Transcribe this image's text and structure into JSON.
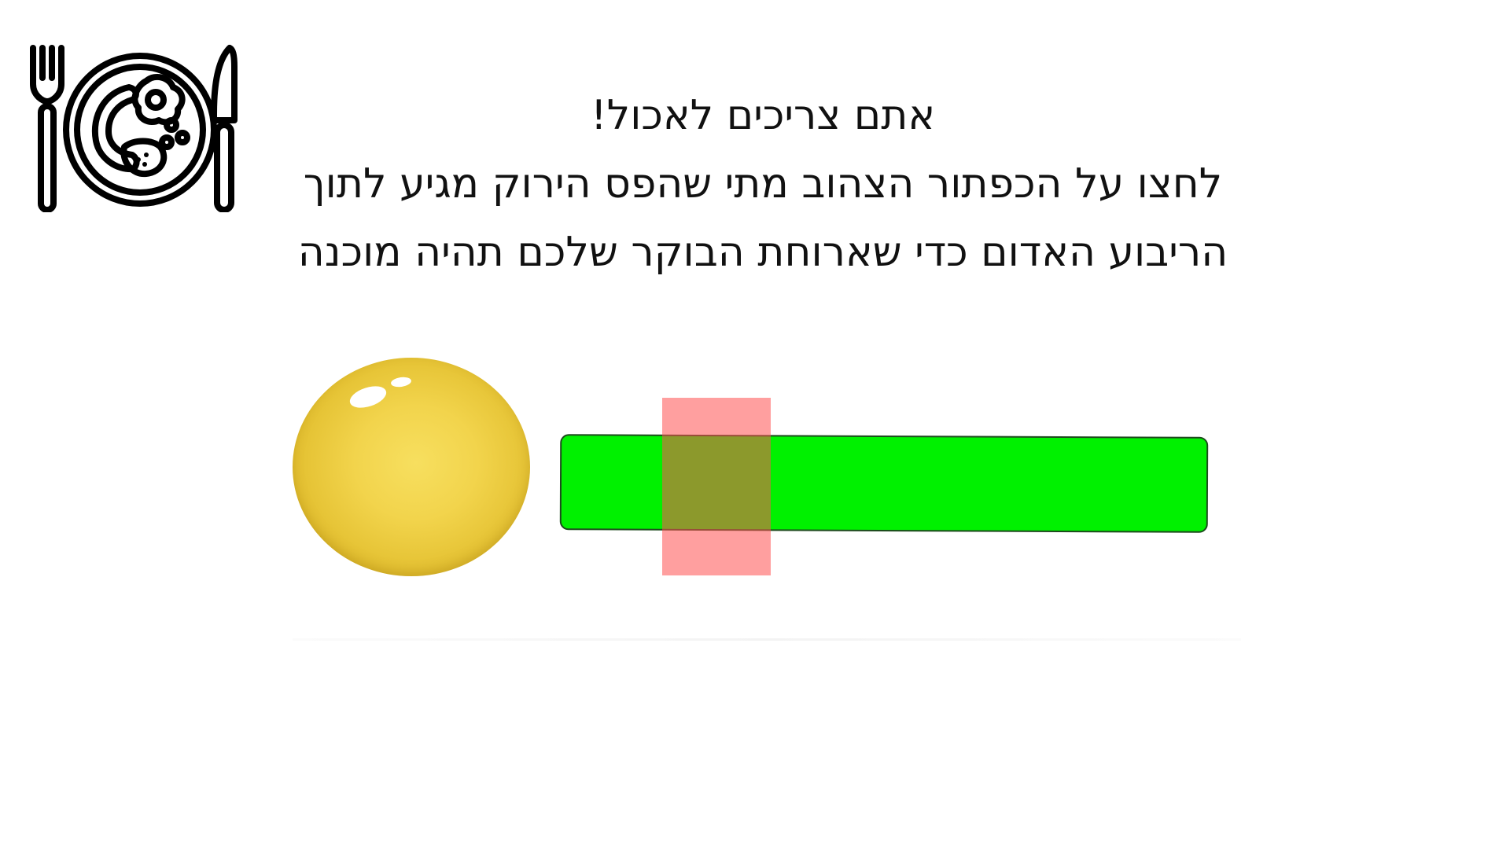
{
  "instructions": {
    "line1": "אתם צריכים לאכול!",
    "line2": "לחצו על הכפתור הצהוב מתי שהפס הירוק מגיע לתוך",
    "line3": "הריבוע האדום כדי שארוחת הבוקר שלכם תהיה מוכנה"
  },
  "icons": {
    "header": "plate-with-fork-and-knife-icon"
  },
  "colors": {
    "button_yellow": "#f2d44c",
    "bar_green": "#00f100",
    "target_red": "#ff5050"
  }
}
